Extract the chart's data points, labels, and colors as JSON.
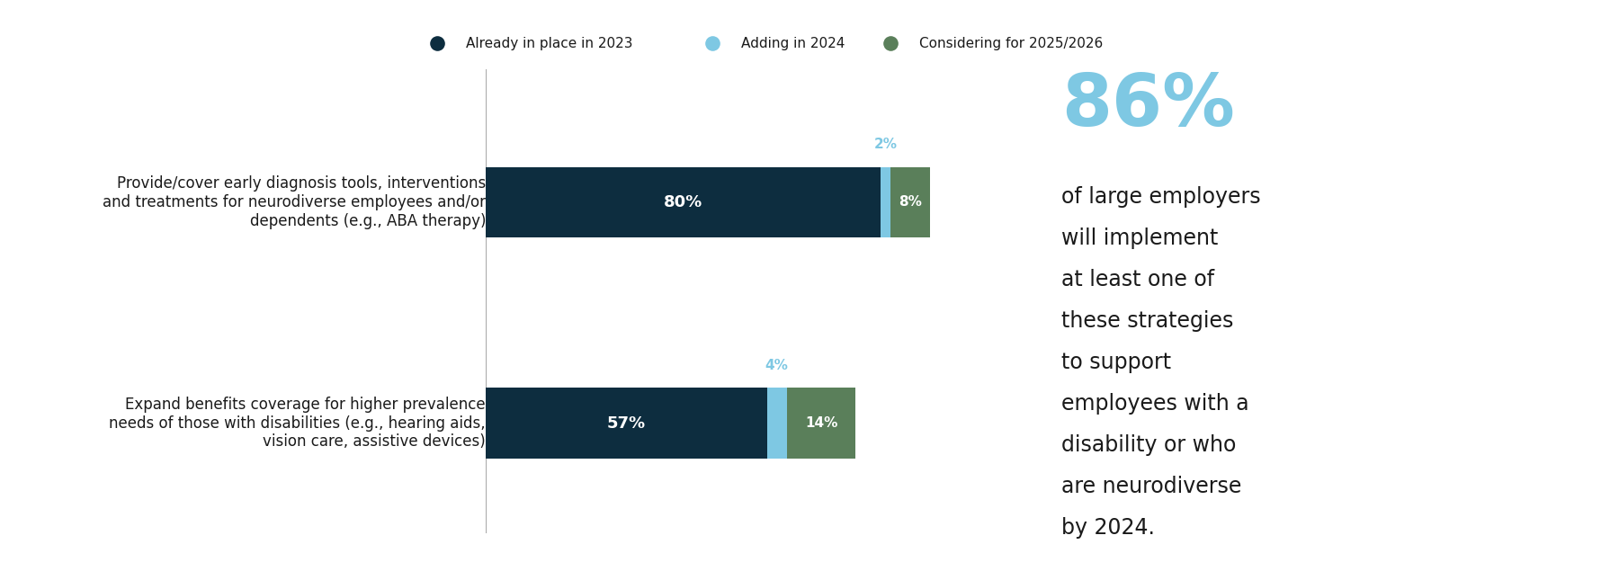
{
  "categories": [
    "Provide/cover early diagnosis tools, interventions\nand treatments for neurodiverse employees and/or\ndependents (e.g., ABA therapy)",
    "Expand benefits coverage for higher prevalence\nneeds of those with disabilities (e.g., hearing aids,\nvision care, assistive devices)"
  ],
  "already_values": [
    80,
    57
  ],
  "adding_values": [
    2,
    4
  ],
  "considering_values": [
    8,
    14
  ],
  "already_color": "#0d2d3f",
  "adding_color": "#7ec8e3",
  "considering_color": "#5a7f5a",
  "already_label": "Already in place in 2023",
  "adding_label": "Adding in 2024",
  "considering_label": "Considering for 2025/2026",
  "bar_labels_already": [
    "80%",
    "57%"
  ],
  "bar_labels_adding": [
    "2%",
    "4%"
  ],
  "bar_labels_considering": [
    "8%",
    "14%"
  ],
  "big_number": "86%",
  "big_number_color": "#7ec8e3",
  "side_text_lines": [
    "of large employers",
    "will implement",
    "at least one of",
    "these strategies",
    "to support",
    "employees with a",
    "disability or who",
    "are neurodiverse",
    "by 2024."
  ],
  "side_text_color": "#1a1a1a",
  "divider_color": "#7ec8e3",
  "background_color": "#ffffff",
  "label_fontsize": 12,
  "bar_label_fontsize_big": 13,
  "bar_label_fontsize_small": 11,
  "legend_fontsize": 11,
  "big_number_fontsize": 58,
  "side_text_fontsize": 17
}
